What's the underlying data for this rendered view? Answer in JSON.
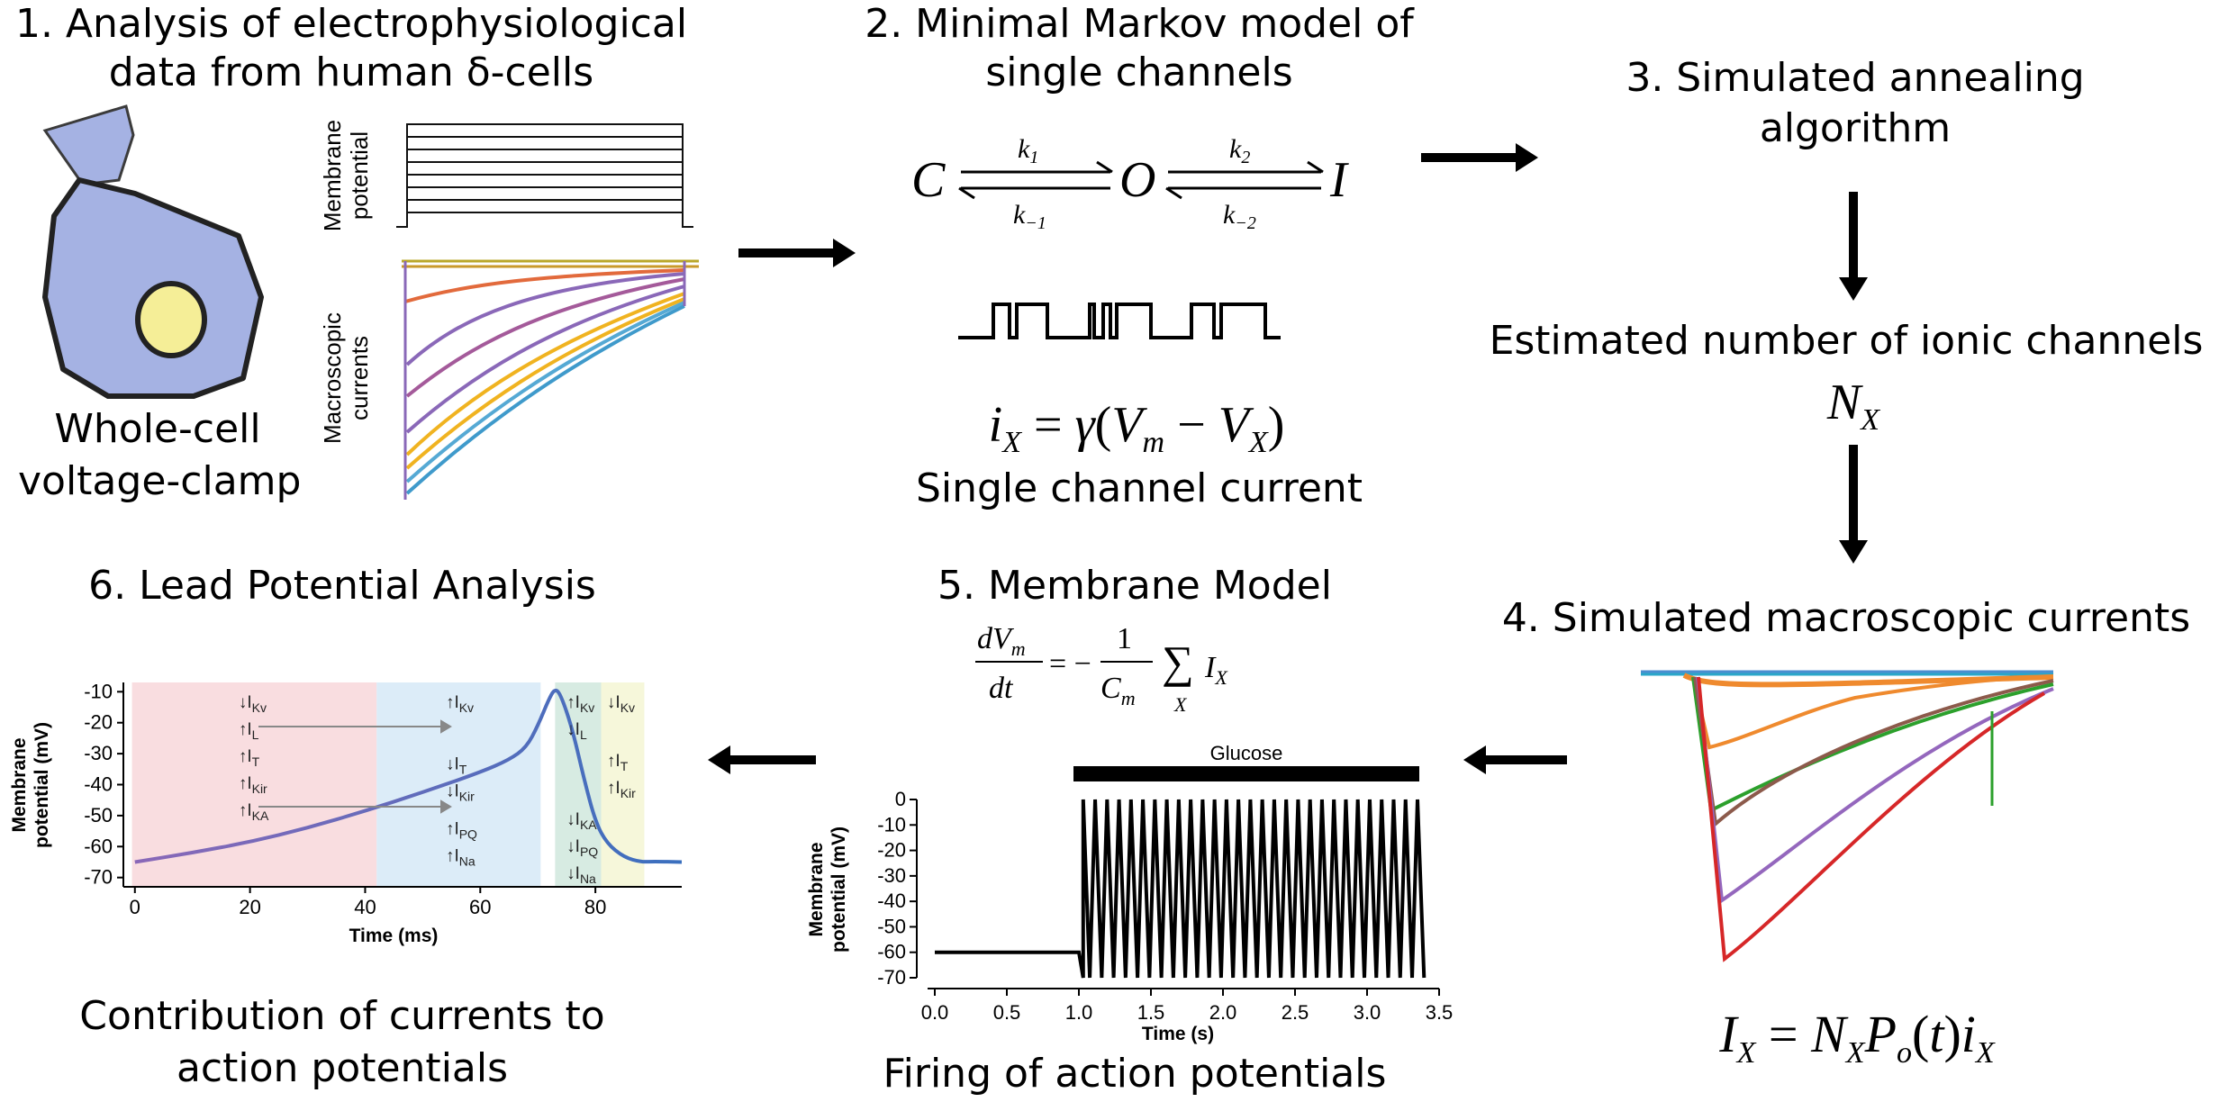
{
  "panel1": {
    "title_line1": "1. Analysis of electrophysiological",
    "title_line2": "data from human δ-cells",
    "cell_caption_line1": "Whole-cell",
    "cell_caption_line2": "voltage-clamp",
    "ylabel_top_line1": "Membrane",
    "ylabel_top_line2": "potential",
    "ylabel_bottom_line1": "Macroscopic",
    "ylabel_bottom_line2": "currents"
  },
  "panel2": {
    "title_line1": "2. Minimal Markov model of",
    "title_line2": "single channels",
    "states": [
      "C",
      "O",
      "I"
    ],
    "rates": [
      "k1",
      "k−1",
      "k2",
      "k−2"
    ],
    "equation": "iX = γ(Vm − VX)",
    "caption": "Single channel current"
  },
  "panel3": {
    "title_line1": "3. Simulated annealing",
    "title_line2": "algorithm",
    "estimate_label": "Estimated number of ionic channels",
    "estimate_symbol": "NX"
  },
  "panel4": {
    "title": "4. Simulated macroscopic currents",
    "equation": "IX = NX Po(t) iX"
  },
  "panel5": {
    "title": "5. Membrane Model",
    "equation": "dVm/dt = −(1/Cm) Σ IX",
    "glucose_label": "Glucose",
    "caption": "Firing of action potentials",
    "chart_data": {
      "type": "line",
      "xlabel": "Time (s)",
      "ylabel": "Membrane potential (mV)",
      "xlim": [
        0,
        3.5
      ],
      "ylim": [
        -70,
        0
      ],
      "xticks": [
        "0.0",
        "0.5",
        "1.0",
        "1.5",
        "2.0",
        "2.5",
        "3.0",
        "3.5"
      ],
      "yticks": [
        "0",
        "-10",
        "-20",
        "-30",
        "-40",
        "-50",
        "-60",
        "-70"
      ],
      "baseline_mv": -60,
      "glucose_on_s": 1.0,
      "spike_count": 29,
      "spike_end_s": 3.35,
      "spike_peak_mv": 0,
      "spike_trough_mv": -70
    }
  },
  "panel6": {
    "title": "6. Lead Potential Analysis",
    "caption_line1": "Contribution of currents to",
    "caption_line2": "action potentials",
    "chart_data": {
      "type": "line",
      "xlabel": "Time (ms)",
      "ylabel": "Membrane potential (mV)",
      "xlim": [
        -2,
        95
      ],
      "ylim": [
        -73,
        -7
      ],
      "xticks": [
        "0",
        "20",
        "40",
        "60",
        "80"
      ],
      "yticks": [
        "-10",
        "-20",
        "-30",
        "-40",
        "-50",
        "-60",
        "-70"
      ],
      "regions": [
        {
          "from": -0.5,
          "to": 42,
          "color": "#f9dde0"
        },
        {
          "from": 42,
          "to": 70.5,
          "color": "#dcecf8"
        },
        {
          "from": 70.5,
          "to": 73,
          "color": "#ffffff"
        },
        {
          "from": 73,
          "to": 81,
          "color": "#d7ebe2"
        },
        {
          "from": 81,
          "to": 88.5,
          "color": "#f6f7da"
        }
      ],
      "trace_t": [
        0,
        10,
        20,
        30,
        40,
        50,
        60,
        65,
        68,
        70,
        72,
        73,
        74,
        76,
        78,
        80,
        82,
        85,
        88,
        90,
        95
      ],
      "trace_v": [
        -65,
        -62,
        -58.5,
        -54,
        -48.5,
        -42.5,
        -36,
        -32,
        -28,
        -21,
        -12,
        -9,
        -11,
        -22,
        -38,
        -52,
        -59,
        -63.5,
        -65,
        -64.8,
        -65
      ],
      "current_groups": [
        {
          "t": 18,
          "items": [
            "↓IKv",
            "↑IL",
            "↑IT",
            "↑IKir",
            "↑IKA"
          ]
        },
        {
          "t": 54,
          "items": [
            "↑IKv"
          ]
        },
        {
          "t": 54,
          "items": [
            "↓IT",
            "↓IKir"
          ],
          "start_mv": -35
        },
        {
          "t": 54,
          "items": [
            "↑IPQ",
            "↑INa"
          ],
          "start_mv": -56
        },
        {
          "t": 75,
          "items": [
            "↑IKv",
            "↓IL"
          ]
        },
        {
          "t": 75,
          "items": [
            "↓IKA",
            "↓IPQ",
            "↓INa"
          ],
          "start_mv": -53
        },
        {
          "t": 82,
          "items": [
            "↓IKv"
          ]
        },
        {
          "t": 82,
          "items": [
            "↑IT",
            "↑IKir"
          ],
          "start_mv": -34
        }
      ]
    }
  },
  "colors": {
    "cell_fill": "#a5b2e3",
    "nucleus_fill": "#f5ee97",
    "trace_blue": "#3a6fbe",
    "trace_purple": "#8a68b8"
  }
}
